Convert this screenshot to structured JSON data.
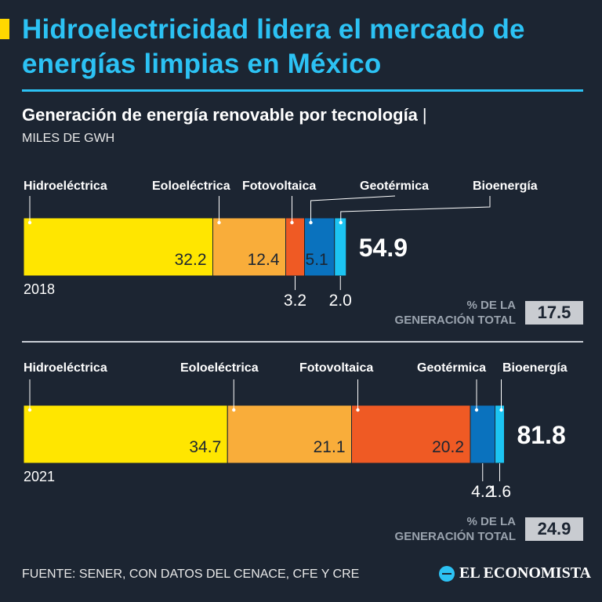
{
  "title": "Hidroelectricidad lidera el mercado de energías limpias en México",
  "subtitle": "Generación de energía renovable por tecnología",
  "subtitle_sep": "|",
  "unit": "MILES DE GWH",
  "colors": {
    "background": "#1c2532",
    "accent": "#2cc2f4",
    "hidro": "#ffe600",
    "eolo": "#f9ad3a",
    "foto": "#ef5a24",
    "geo": "#0a72be",
    "bio": "#1cc4f2"
  },
  "chart_data": {
    "type": "bar",
    "orientation": "horizontal-stacked",
    "title": "Generación de energía renovable por tecnología",
    "unit": "MILES DE GWH",
    "categories": [
      "Hidroeléctrica",
      "Eoloeléctrica",
      "Fotovoltaica",
      "Geotérmica",
      "Bioenergía"
    ],
    "rows": [
      {
        "year": "2018",
        "values": [
          32.2,
          12.4,
          3.2,
          5.1,
          2.0
        ],
        "labels": [
          "32.2",
          "12.4",
          "3.2",
          "5.1",
          "2.0"
        ],
        "total": "54.9",
        "pct_label_line1": "% DE LA",
        "pct_label_line2": "GENERACIÓN TOTAL",
        "pct_value": "17.5"
      },
      {
        "year": "2021",
        "values": [
          34.7,
          21.1,
          20.2,
          4.2,
          1.6
        ],
        "labels": [
          "34.7",
          "21.1",
          "20.2",
          "4.2",
          "1.6"
        ],
        "total": "81.8",
        "pct_label_line1": "% DE LA",
        "pct_label_line2": "GENERACIÓN TOTAL",
        "pct_value": "24.9"
      }
    ]
  },
  "source": "FUENTE: SENER, CON DATOS  DEL CENACE, CFE Y CRE",
  "brand": "EL ECONOMISTA"
}
